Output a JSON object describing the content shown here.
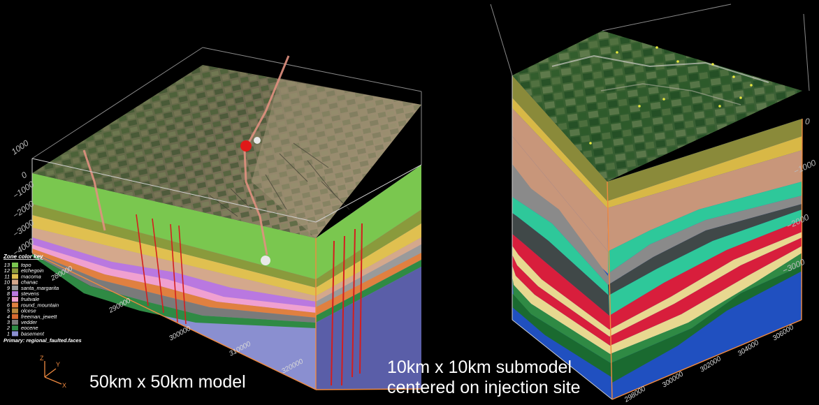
{
  "captions": {
    "left": "50km x 50km model",
    "right_line1": "10km x 10km submodel",
    "right_line2": "centered on injection site"
  },
  "left_model": {
    "depth_labels": [
      "1000",
      "0",
      "−1000",
      "−2000",
      "−3000",
      "−4000"
    ],
    "x_ticks": [
      "290000",
      "300000",
      "310000",
      "320000"
    ],
    "x_ticks_cut": [
      "280000"
    ],
    "zone_key": {
      "title": "Zone color key",
      "entries": [
        {
          "num": "13",
          "name": "topo",
          "color": "#7ac74f"
        },
        {
          "num": "12",
          "name": "etchegoin",
          "color": "#8a9a3c"
        },
        {
          "num": "11",
          "name": "macoma",
          "color": "#e0c050"
        },
        {
          "num": "10",
          "name": "chanac",
          "color": "#d4a88c"
        },
        {
          "num": "9",
          "name": "santa_margarita",
          "color": "#9a9a9a"
        },
        {
          "num": "8",
          "name": "stevens",
          "color": "#b978e0"
        },
        {
          "num": "7",
          "name": "fruitvale",
          "color": "#f0a0d0"
        },
        {
          "num": "6",
          "name": "round_mountain",
          "color": "#e08040"
        },
        {
          "num": "5",
          "name": "olcese",
          "color": "#b8863c"
        },
        {
          "num": "4",
          "name": "freeman_jewett",
          "color": "#d86a30"
        },
        {
          "num": "3",
          "name": "vedder",
          "color": "#7a7a7a"
        },
        {
          "num": "2",
          "name": "eocene",
          "color": "#2f8a44"
        },
        {
          "num": "1",
          "name": "basement",
          "color": "#8a8fd0"
        }
      ],
      "primary": "Primary: regional_faulted.faces"
    },
    "axis_triad": [
      "Z",
      "Y",
      "X"
    ]
  },
  "right_model": {
    "depth_labels": [
      "0",
      "−1000",
      "−2000",
      "−3000"
    ],
    "x_ticks": [
      "298000",
      "300000",
      "302000",
      "304000",
      "306000"
    ]
  },
  "colors": {
    "background": "#000000",
    "frame": "#f08a40",
    "fault": "#e02020",
    "injection_marker": "#e01818"
  }
}
